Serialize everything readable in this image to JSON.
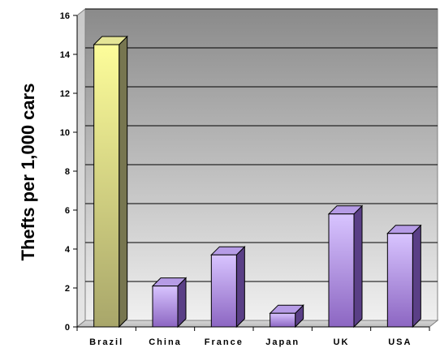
{
  "chart_data": {
    "type": "bar",
    "categories": [
      "Brazil",
      "China",
      "France",
      "Japan",
      "UK",
      "USA"
    ],
    "values": [
      14.5,
      2.1,
      3.7,
      0.7,
      5.8,
      4.8
    ],
    "title": "",
    "xlabel": "",
    "ylabel": "Thefts per 1,000 cars",
    "ylim": [
      0,
      16
    ],
    "yticks": [
      0,
      2,
      4,
      6,
      8,
      10,
      12,
      14,
      16
    ],
    "grid": true,
    "legend": "none",
    "colors": {
      "highlight_front_top": "#fdfd9a",
      "highlight_front_bottom": "#a8a66a",
      "highlight_side": "#777650",
      "highlight_top": "#e5e596",
      "bar_front_top": "#d8c4ff",
      "bar_front_bottom": "#8c66c2",
      "bar_side": "#5a3f86",
      "bar_top": "#b69ce6",
      "background_top": "#8a8a8a",
      "background_bottom": "#f0f0f0"
    }
  }
}
